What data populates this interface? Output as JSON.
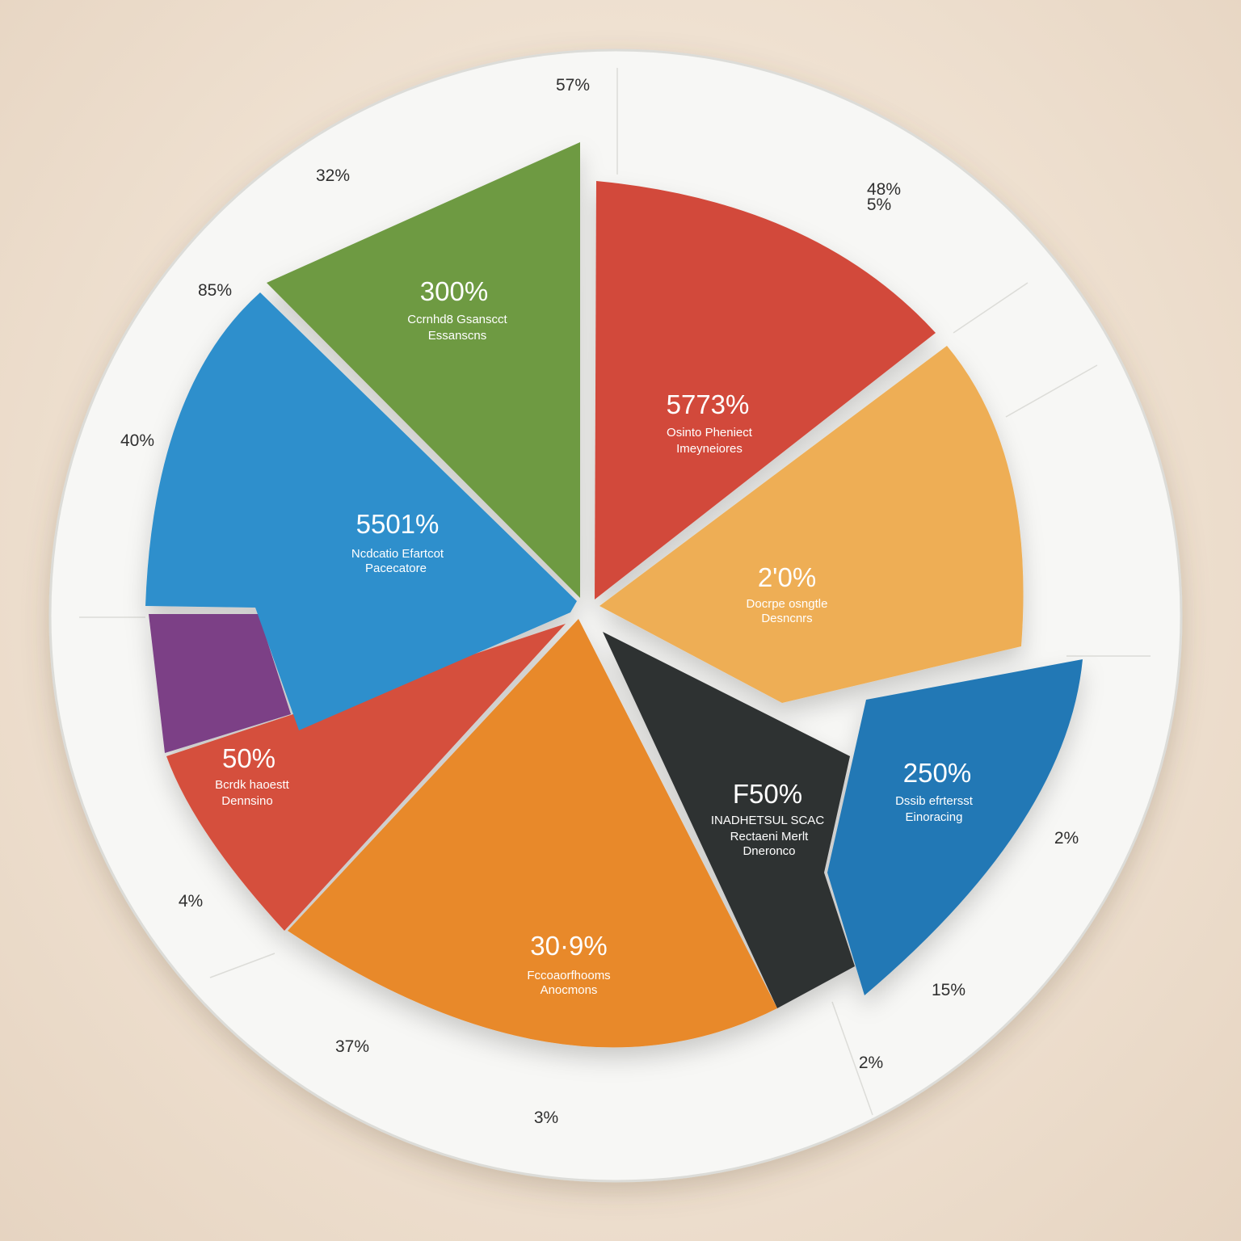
{
  "chart_data": {
    "type": "pie",
    "colors": {
      "plate": "#f7f7f5",
      "plate_edge": "#dcdcd8",
      "outer_label": "#2f2f2f"
    },
    "slices": [
      {
        "value_label": "300%",
        "caption": [
          "Ccrnhd8 Gsanscct",
          "Essanscns"
        ],
        "color": "#6e9a43",
        "text_color": "#ffffff"
      },
      {
        "value_label": "5773%",
        "caption": [
          "Osinto Pheniect",
          "Imeyneiores"
        ],
        "color": "#d2493a",
        "text_color": "#ffffff"
      },
      {
        "value_label": "2'0%",
        "caption": [
          "Docrpe osngtle",
          "Desncnrs"
        ],
        "color": "#eeae55",
        "text_color": "#ffffff"
      },
      {
        "value_label": "250%",
        "caption": [
          "Dssib efrtersst",
          "Einoracing"
        ],
        "color": "#2178b5",
        "text_color": "#ffffff"
      },
      {
        "value_label": "F50%",
        "caption": [
          "INADHETSUL SCAC",
          "Rectaeni Merlt",
          "Dneronco"
        ],
        "color": "#2f3133",
        "text_color": "#ffffff"
      },
      {
        "value_label": "30·9%",
        "caption": [
          "Fccoaorfhooms",
          "Anocmons"
        ],
        "color": "#e8892b",
        "text_color": "#ffffff"
      },
      {
        "value_label": "50%",
        "caption": [
          "Bcrdk haoestt",
          "Dennsino"
        ],
        "color": "#d5503c",
        "text_color": "#ffffff"
      },
      {
        "value_label": "",
        "caption": [],
        "color": "#7b3f86",
        "text_color": "#ffffff"
      },
      {
        "value_label": "5501%",
        "caption": [
          "Ncdcatio Efartcot",
          "Pacecatore"
        ],
        "color": "#2f8fcc",
        "text_color": "#ffffff"
      }
    ],
    "outer_labels": [
      "57%",
      "48%",
      "5%",
      "2%",
      "15%",
      "2%",
      "3%",
      "37%",
      "4%",
      "40%",
      "85%",
      "32%"
    ]
  }
}
